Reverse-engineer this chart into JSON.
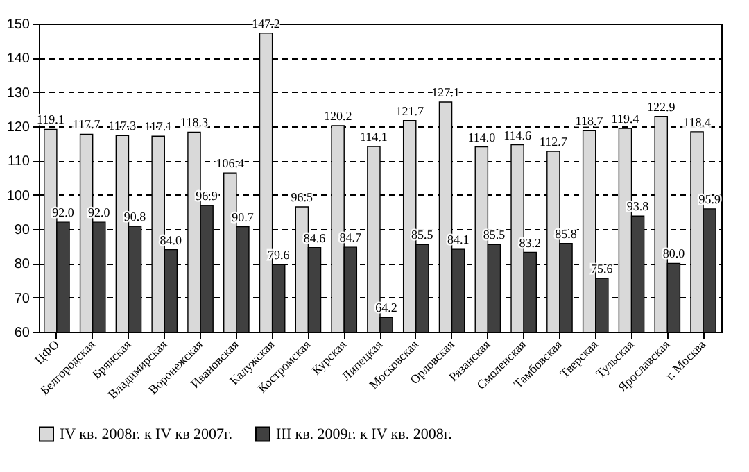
{
  "chart_data": {
    "type": "bar",
    "categories": [
      "ЦФО",
      "Белгородская",
      "Брянская",
      "Владимирская",
      "Воронежская",
      "Ивановская",
      "Калужская",
      "Костромская",
      "Курская",
      "Липецкая",
      "Московская",
      "Орловская",
      "Рязанская",
      "Смоленская",
      "Тамбовская",
      "Тверская",
      "Тульская",
      "Ярославская",
      "г. Москва"
    ],
    "series": [
      {
        "name": "IV кв. 2008г. к IV кв 2007г.",
        "color": "#d9d9d9",
        "values": [
          119.1,
          117.7,
          117.3,
          117.1,
          118.3,
          106.4,
          147.2,
          96.5,
          120.2,
          114.1,
          121.7,
          127.1,
          114.0,
          114.6,
          112.7,
          118.7,
          119.4,
          122.9,
          118.4
        ],
        "value_labels": [
          "119.1",
          "117.7",
          "117.3",
          "117.1",
          "118.3",
          "106.4",
          "147.2",
          "96.5",
          "120.2",
          "114.1",
          "121.7",
          "127.1",
          "114.0",
          "114.6",
          "112.7",
          "118.7",
          "119.4",
          "122.9",
          "118.4"
        ]
      },
      {
        "name": "III кв. 2009г. к IV кв. 2008г.",
        "color": "#404040",
        "values": [
          92.0,
          92.0,
          90.8,
          84.0,
          96.9,
          90.7,
          79.6,
          84.6,
          84.7,
          64.2,
          85.5,
          84.1,
          85.5,
          83.2,
          85.8,
          75.6,
          93.8,
          80.0,
          95.9
        ],
        "value_labels": [
          "92.0",
          "92.0",
          "90.8",
          "84.0",
          "96.9",
          "90.7",
          "79.6",
          "84.6",
          "84.7",
          "64.2",
          "85.5",
          "84.1",
          "85.5",
          "83.2",
          "85.8",
          "75.6",
          "93.8",
          "80.0",
          "95.9"
        ]
      }
    ],
    "ylim": [
      60,
      150
    ],
    "yticks": [
      60,
      70,
      80,
      90,
      100,
      110,
      120,
      130,
      140,
      150
    ],
    "grid": "y",
    "legend": "bottom"
  }
}
